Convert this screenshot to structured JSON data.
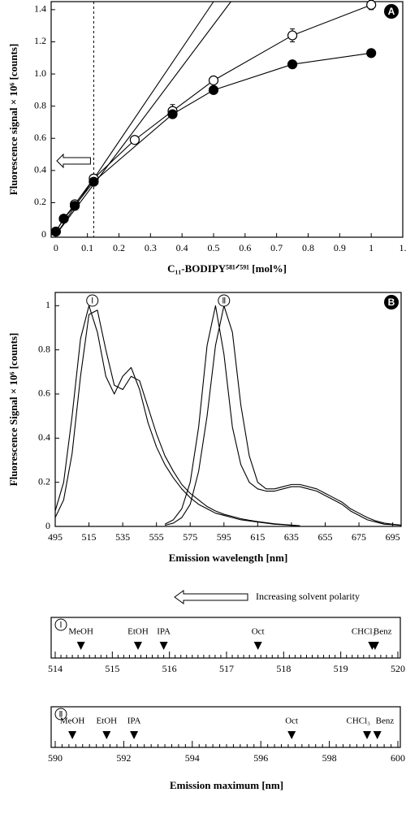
{
  "chart_data": [
    {
      "type": "scatter",
      "panel": "A",
      "xlabel": "C₁₁-BODIPY⁵⁸¹ᐟ⁵⁹¹ [mol%]",
      "ylabel": "Fluorescence signal × 10⁶ [counts]",
      "xlim": [
        -0.015,
        1.1
      ],
      "ylim": [
        -0.015,
        1.45
      ],
      "xticks": [
        0,
        0.1,
        0.2,
        0.3,
        0.4,
        0.5,
        0.6,
        0.7,
        0.8,
        0.9,
        1,
        {
          "value": 1.1,
          "label": "1."
        }
      ],
      "yticks": [
        0,
        0.2,
        0.4,
        0.6,
        0.8,
        {
          "value": 1.0,
          "label": "1.0"
        },
        1.2,
        1.4
      ],
      "vline": 0.12,
      "series": [
        {
          "marker": "open",
          "color": "#000000",
          "x": [
            0,
            0.025,
            0.06,
            0.12,
            0.25,
            0.37,
            0.5,
            0.75,
            1
          ],
          "values": [
            0.02,
            0.1,
            0.19,
            0.35,
            0.59,
            0.77,
            0.96,
            1.24,
            1.43
          ],
          "errors": [
            null,
            null,
            null,
            null,
            null,
            0.04,
            0.02,
            0.04,
            0.03
          ]
        },
        {
          "marker": "filled",
          "color": "#000000",
          "x": [
            0,
            0.025,
            0.06,
            0.12,
            0.37,
            0.5,
            0.75,
            1
          ],
          "values": [
            0.02,
            0.1,
            0.18,
            0.33,
            0.75,
            0.9,
            1.06,
            1.13
          ]
        },
        {
          "marker": "none",
          "color": "#000000",
          "x": [
            0,
            0.5
          ],
          "values": [
            0,
            1.45
          ]
        },
        {
          "marker": "none",
          "color": "#000000",
          "x": [
            0,
            0.555
          ],
          "values": [
            0,
            1.45
          ]
        }
      ]
    },
    {
      "type": "line",
      "panel": "B",
      "xlabel": "Emission wavelength [nm]",
      "ylabel": "Fluorescence Signal × 10⁶ [counts]",
      "xlim": [
        495,
        700
      ],
      "ylim": [
        0,
        1.06
      ],
      "xticks": [
        495,
        515,
        535,
        555,
        575,
        595,
        615,
        635,
        655,
        675,
        695
      ],
      "yticks": [
        0,
        0.2,
        0.4,
        0.6,
        0.8,
        1
      ],
      "annotations": [
        {
          "x": 517,
          "label": "Ⅰ"
        },
        {
          "x": 595,
          "label": "Ⅱ"
        }
      ],
      "x": [
        495,
        500,
        505,
        510,
        515,
        520,
        525,
        530,
        535,
        540,
        545,
        550,
        555,
        560,
        565,
        570,
        575,
        580,
        585,
        590,
        595,
        600,
        605,
        610,
        615,
        620,
        625,
        630,
        635,
        640,
        645,
        650,
        655,
        660,
        665,
        670,
        675,
        680,
        685,
        690,
        695,
        700
      ],
      "series": [
        {
          "color": "#000000",
          "values": [
            0.07,
            0.2,
            0.5,
            0.85,
            1.0,
            0.88,
            0.68,
            0.6,
            0.68,
            0.72,
            0.62,
            0.47,
            0.36,
            0.28,
            0.22,
            0.17,
            0.13,
            0.1,
            0.08,
            0.06,
            0.05,
            0.04,
            0.03,
            0.025,
            0.02,
            0.015,
            0.01,
            0.008,
            0.005,
            0.003,
            null,
            null,
            null,
            null,
            null,
            null,
            null,
            null,
            null,
            null,
            null,
            null
          ]
        },
        {
          "color": "#000000",
          "values": [
            0.04,
            0.12,
            0.33,
            0.68,
            0.96,
            0.98,
            0.8,
            0.64,
            0.62,
            0.68,
            0.66,
            0.54,
            0.42,
            0.32,
            0.25,
            0.19,
            0.15,
            0.12,
            0.09,
            0.07,
            0.055,
            0.045,
            0.035,
            0.028,
            0.022,
            0.017,
            0.012,
            0.009,
            0.006,
            0.003,
            null,
            null,
            null,
            null,
            null,
            null,
            null,
            null,
            null,
            null,
            null,
            null
          ]
        },
        {
          "color": "#000000",
          "values": [
            null,
            null,
            null,
            null,
            null,
            null,
            null,
            null,
            null,
            null,
            null,
            null,
            null,
            0.01,
            0.03,
            0.08,
            0.2,
            0.45,
            0.82,
            1.0,
            0.78,
            0.45,
            0.28,
            0.2,
            0.17,
            0.16,
            0.16,
            0.17,
            0.18,
            0.18,
            0.17,
            0.16,
            0.14,
            0.12,
            0.1,
            0.07,
            0.05,
            0.03,
            0.02,
            0.01,
            0.008,
            0.005
          ]
        },
        {
          "color": "#000000",
          "values": [
            null,
            null,
            null,
            null,
            null,
            null,
            null,
            null,
            null,
            null,
            null,
            null,
            null,
            0.005,
            0.015,
            0.04,
            0.1,
            0.25,
            0.5,
            0.82,
            1.0,
            0.88,
            0.55,
            0.32,
            0.2,
            0.17,
            0.17,
            0.18,
            0.19,
            0.19,
            0.18,
            0.17,
            0.15,
            0.13,
            0.11,
            0.08,
            0.06,
            0.04,
            0.025,
            0.015,
            0.01,
            0.006
          ]
        }
      ]
    },
    {
      "type": "strip",
      "panel": "Ⅰ",
      "annotation": "Increasing solvent polarity",
      "xlim": [
        514,
        520
      ],
      "xticks": [
        514,
        515,
        516,
        517,
        518,
        519,
        520
      ],
      "minor_ticks_per_interval": 10,
      "categories": [
        "MeOH",
        "EtOH",
        "IPA",
        "Oct",
        "CHCl₃",
        "Benz"
      ],
      "values": [
        514.45,
        515.45,
        515.9,
        517.55,
        519.55,
        519.6
      ]
    },
    {
      "type": "strip",
      "panel": "Ⅱ",
      "xlabel": "Emission maximum [nm]",
      "xlim": [
        590,
        600
      ],
      "xticks": [
        590,
        592,
        594,
        596,
        598,
        600
      ],
      "minor_ticks_per_interval": 10,
      "categories": [
        "MeOH",
        "EtOH",
        "IPA",
        "Oct",
        "CHCl₃",
        "Benz"
      ],
      "values": [
        590.5,
        591.5,
        592.3,
        596.9,
        599.1,
        599.4
      ]
    }
  ]
}
